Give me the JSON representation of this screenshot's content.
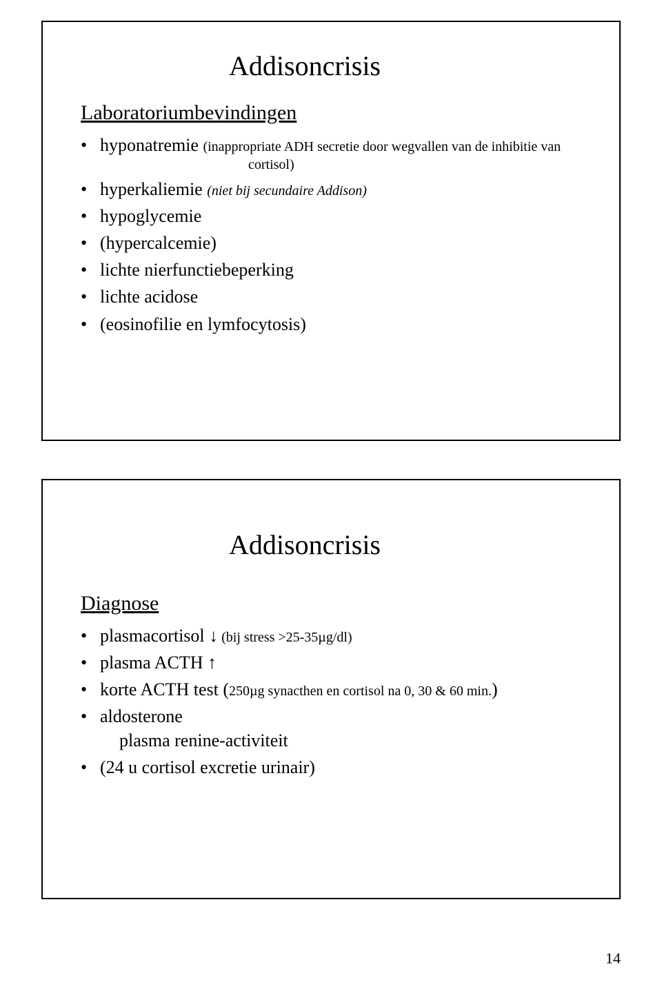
{
  "slide1": {
    "title": "Addisoncrisis",
    "section": "Laboratoriumbevindingen",
    "items": [
      {
        "prefix": "hyponatremie ",
        "small": "(inappropriate ADH secretie door wegvallen van de inhibitie van",
        "cortisol_note": "cortisol)"
      },
      {
        "prefix": "hyperkaliemie ",
        "ital_small": "(niet bij secundaire Addison)"
      },
      {
        "text": "hypoglycemie"
      },
      {
        "text": "(hypercalcemie)"
      },
      {
        "text": "lichte nierfunctiebeperking"
      },
      {
        "text": "lichte acidose"
      },
      {
        "text": "(eosinofilie en lymfocytosis)"
      }
    ]
  },
  "slide2": {
    "title": "Addisoncrisis",
    "section": "Diagnose",
    "items": [
      {
        "text_a": "plasmacortisol ",
        "arrow": "↓",
        "small": " (bij stress >25-35µg/dl)"
      },
      {
        "text_a": "plasma ACTH ",
        "arrow": "↑"
      },
      {
        "text_a": "korte ACTH test (",
        "small": "250µg synacthen en cortisol na 0, 30 & 60 min.",
        "text_b": ")"
      },
      {
        "text_a": "aldosterone",
        "indent_line": "plasma renine-activiteit"
      },
      {
        "text_a": "(24 u cortisol excretie urinair)"
      }
    ]
  },
  "page_number": "14"
}
